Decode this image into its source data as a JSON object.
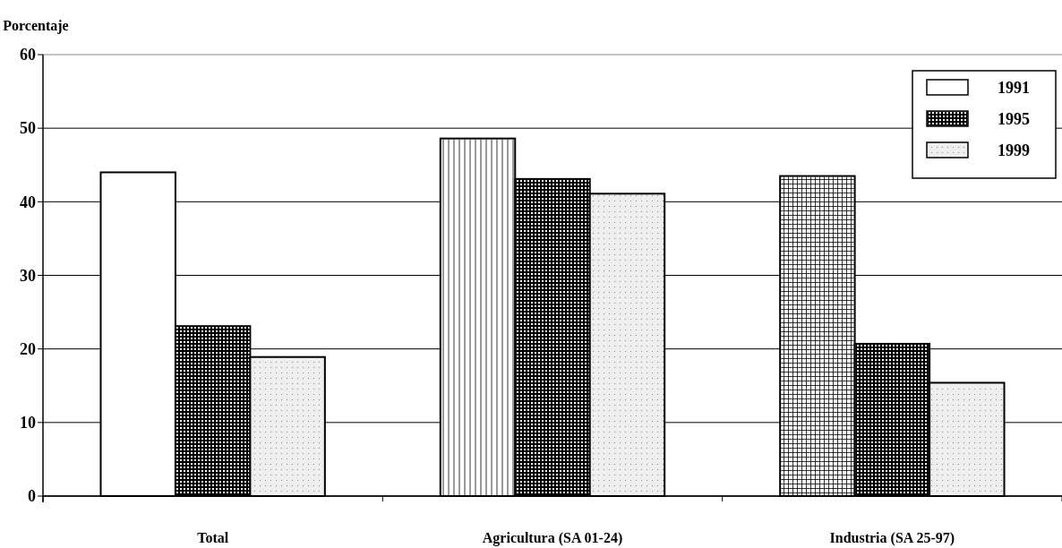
{
  "chart_data": {
    "type": "bar",
    "ylabel": "Porcentaje",
    "categories": [
      "Total",
      "Agricultura (SA 01-24)",
      "Industria (SA 25-97)"
    ],
    "series": [
      {
        "name": "1991",
        "color": "#ffffff",
        "values": [
          44,
          48.6,
          43.5
        ]
      },
      {
        "name": "1995",
        "color": "#808080",
        "values": [
          23.1,
          43.1,
          20.7
        ]
      },
      {
        "name": "1999",
        "color": "#eeeeee",
        "values": [
          18.9,
          41.1,
          15.4
        ]
      }
    ],
    "ylim": [
      0,
      60
    ],
    "yticks": [
      0,
      10,
      20,
      30,
      40,
      50,
      60
    ],
    "grid": "y",
    "legend": "top right"
  }
}
